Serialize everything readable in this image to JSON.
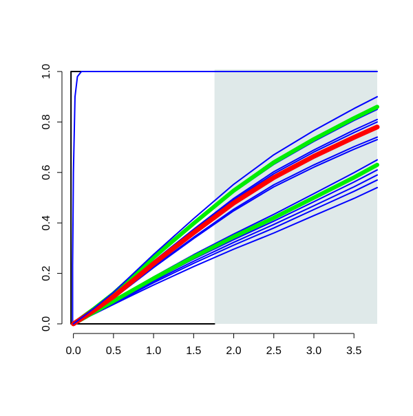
{
  "chart_data": {
    "type": "line",
    "xlim": [
      -0.1,
      3.79
    ],
    "ylim": [
      0,
      1
    ],
    "xticks": [
      {
        "value": 0,
        "label": "0.0"
      },
      0.5,
      {
        "value": 1,
        "label": "1.0"
      },
      1.5,
      {
        "value": 2,
        "label": "2.0"
      },
      2.5,
      {
        "value": 3,
        "label": "3.0"
      },
      3.5
    ],
    "yticks": [
      {
        "value": 0,
        "label": "0.0"
      },
      0.2,
      0.4,
      0.6,
      0.8,
      {
        "value": 1,
        "label": "1.0"
      }
    ],
    "shade_from": 1.76,
    "shade_color": "#dfe9e9",
    "x": [
      0,
      0.25,
      0.5,
      0.75,
      1,
      1.5,
      2,
      2.5,
      3,
      3.5,
      3.79
    ],
    "series": [
      {
        "color": "#000000",
        "width": 2,
        "x": [
          1.76,
          -0.03,
          -0.03,
          1.76
        ],
        "values": [
          0,
          0,
          1,
          1
        ]
      },
      {
        "color": "#0000ff",
        "width": 2,
        "x": [
          -0.01,
          -0.01,
          0,
          0.02,
          0.05,
          0.1,
          3.79
        ],
        "values": [
          0,
          0.23,
          0.6,
          0.9,
          0.98,
          1,
          1
        ]
      },
      {
        "color": "#0000ff",
        "width": 2,
        "values": [
          0,
          0.038,
          0.077,
          0.116,
          0.154,
          0.227,
          0.296,
          0.36,
          0.429,
          0.497,
          0.54
        ]
      },
      {
        "color": "#0000ff",
        "width": 2,
        "values": [
          0,
          0.04,
          0.082,
          0.122,
          0.163,
          0.24,
          0.312,
          0.38,
          0.453,
          0.525,
          0.57
        ]
      },
      {
        "color": "#0000ff",
        "width": 2,
        "values": [
          0,
          0.042,
          0.084,
          0.126,
          0.169,
          0.248,
          0.323,
          0.394,
          0.468,
          0.543,
          0.59
        ]
      },
      {
        "color": "#0000ff",
        "width": 2,
        "values": [
          0,
          0.043,
          0.087,
          0.131,
          0.174,
          0.257,
          0.334,
          0.407,
          0.484,
          0.562,
          0.61
        ]
      },
      {
        "color": "#0000ff",
        "width": 2,
        "values": [
          0,
          0.046,
          0.093,
          0.139,
          0.186,
          0.274,
          0.356,
          0.434,
          0.516,
          0.599,
          0.65
        ]
      },
      {
        "color": "#00ee00",
        "width": 6,
        "values": [
          0,
          0.045,
          0.09,
          0.135,
          0.18,
          0.265,
          0.345,
          0.42,
          0.5,
          0.58,
          0.63
        ]
      },
      {
        "color": "#0000ff",
        "width": 2,
        "values": [
          0,
          0.049,
          0.101,
          0.162,
          0.223,
          0.338,
          0.448,
          0.543,
          0.621,
          0.692,
          0.73
        ]
      },
      {
        "color": "#0000ff",
        "width": 2,
        "values": [
          0,
          0.05,
          0.103,
          0.164,
          0.226,
          0.343,
          0.454,
          0.551,
          0.63,
          0.702,
          0.74
        ]
      },
      {
        "color": "#0000ff",
        "width": 2,
        "values": [
          0,
          0.054,
          0.111,
          0.178,
          0.245,
          0.37,
          0.491,
          0.595,
          0.681,
          0.758,
          0.8
        ]
      },
      {
        "color": "#0000ff",
        "width": 2,
        "values": [
          0,
          0.054,
          0.113,
          0.18,
          0.248,
          0.375,
          0.497,
          0.603,
          0.689,
          0.768,
          0.81
        ]
      },
      {
        "color": "#0000ff",
        "width": 2,
        "values": [
          0,
          0.057,
          0.118,
          0.189,
          0.26,
          0.394,
          0.522,
          0.632,
          0.723,
          0.806,
          0.85
        ]
      },
      {
        "color": "#00ee00",
        "width": 6,
        "values": [
          0,
          0.058,
          0.12,
          0.191,
          0.263,
          0.398,
          0.528,
          0.64,
          0.732,
          0.815,
          0.86
        ]
      },
      {
        "color": "#ff0000",
        "width": 7,
        "values": [
          0,
          0.052,
          0.108,
          0.173,
          0.239,
          0.361,
          0.479,
          0.58,
          0.664,
          0.739,
          0.78
        ]
      },
      {
        "color": "#0000ff",
        "width": 2,
        "values": [
          0,
          0.06,
          0.125,
          0.2,
          0.275,
          0.417,
          0.553,
          0.67,
          0.766,
          0.853,
          0.9
        ]
      }
    ]
  }
}
